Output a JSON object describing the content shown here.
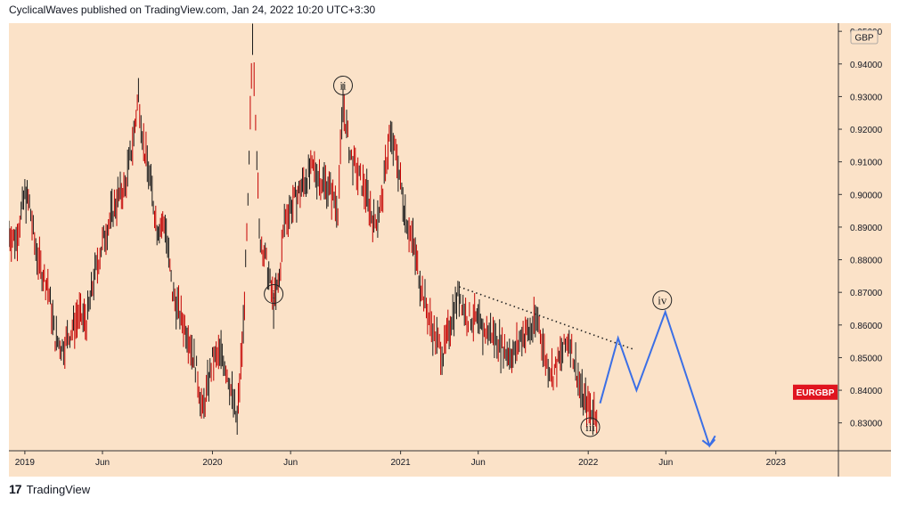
{
  "header": {
    "text": "CyclicalWaves published on TradingView.com, Jan 24, 2022 10:20 UTC+3:30"
  },
  "footer": {
    "brand": "TradingView",
    "logo": "17"
  },
  "colors": {
    "background": "#fbe2c8",
    "candle": "#c40000",
    "projection": "#3b6fe6",
    "badge": "#e0141f"
  },
  "chart_data": {
    "type": "line",
    "symbol": "EURGBP",
    "currency": "GBP",
    "grid": false,
    "ylim": [
      0.822,
      0.9525
    ],
    "y_ticks": [
      "0.95000",
      "0.94000",
      "0.93000",
      "0.92000",
      "0.91000",
      "0.90000",
      "0.89000",
      "0.88000",
      "0.87000",
      "0.86000",
      "0.85000",
      "0.84000",
      "0.83000"
    ],
    "x_ticks": [
      "2019",
      "Jun",
      "2020",
      "Jun",
      "2021",
      "Jun",
      "2022",
      "Jun",
      "2023"
    ],
    "series": [
      {
        "values": [
          [
            "2018-12-01",
            0.888
          ],
          [
            "2018-12-15",
            0.886
          ],
          [
            "2019-01-01",
            0.9
          ],
          [
            "2019-01-10",
            0.897
          ],
          [
            "2019-01-20",
            0.885
          ],
          [
            "2019-02-01",
            0.877
          ],
          [
            "2019-02-15",
            0.872
          ],
          [
            "2019-03-01",
            0.856
          ],
          [
            "2019-03-15",
            0.853
          ],
          [
            "2019-04-01",
            0.858
          ],
          [
            "2019-04-15",
            0.863
          ],
          [
            "2019-05-01",
            0.861
          ],
          [
            "2019-05-15",
            0.874
          ],
          [
            "2019-06-01",
            0.885
          ],
          [
            "2019-06-15",
            0.892
          ],
          [
            "2019-07-01",
            0.899
          ],
          [
            "2019-07-15",
            0.902
          ],
          [
            "2019-08-01",
            0.918
          ],
          [
            "2019-08-10",
            0.931
          ],
          [
            "2019-08-20",
            0.915
          ],
          [
            "2019-09-01",
            0.905
          ],
          [
            "2019-09-15",
            0.89
          ],
          [
            "2019-10-01",
            0.891
          ],
          [
            "2019-10-15",
            0.87
          ],
          [
            "2019-11-01",
            0.862
          ],
          [
            "2019-11-15",
            0.857
          ],
          [
            "2019-12-01",
            0.846
          ],
          [
            "2019-12-13",
            0.833
          ],
          [
            "2020-01-01",
            0.849
          ],
          [
            "2020-01-20",
            0.851
          ],
          [
            "2020-02-01",
            0.844
          ],
          [
            "2020-02-18",
            0.83
          ],
          [
            "2020-03-01",
            0.859
          ],
          [
            "2020-03-10",
            0.896
          ],
          [
            "2020-03-19",
            0.95
          ],
          [
            "2020-03-25",
            0.925
          ],
          [
            "2020-04-01",
            0.888
          ],
          [
            "2020-04-15",
            0.879
          ],
          [
            "2020-04-29",
            0.866
          ],
          [
            "2020-05-10",
            0.874
          ],
          [
            "2020-05-20",
            0.892
          ],
          [
            "2020-06-01",
            0.896
          ],
          [
            "2020-06-15",
            0.9
          ],
          [
            "2020-07-01",
            0.905
          ],
          [
            "2020-07-15",
            0.908
          ],
          [
            "2020-08-01",
            0.904
          ],
          [
            "2020-08-15",
            0.902
          ],
          [
            "2020-09-01",
            0.896
          ],
          [
            "2020-09-11",
            0.928
          ],
          [
            "2020-09-25",
            0.912
          ],
          [
            "2020-10-10",
            0.906
          ],
          [
            "2020-10-25",
            0.901
          ],
          [
            "2020-11-10",
            0.891
          ],
          [
            "2020-11-25",
            0.897
          ],
          [
            "2020-12-10",
            0.918
          ],
          [
            "2020-12-25",
            0.911
          ],
          [
            "2021-01-10",
            0.894
          ],
          [
            "2021-01-25",
            0.885
          ],
          [
            "2021-02-10",
            0.872
          ],
          [
            "2021-02-25",
            0.862
          ],
          [
            "2021-03-10",
            0.856
          ],
          [
            "2021-03-25",
            0.851
          ],
          [
            "2021-04-10",
            0.862
          ],
          [
            "2021-04-25",
            0.87
          ],
          [
            "2021-05-10",
            0.862
          ],
          [
            "2021-05-25",
            0.862
          ],
          [
            "2021-06-10",
            0.858
          ],
          [
            "2021-06-25",
            0.858
          ],
          [
            "2021-07-10",
            0.855
          ],
          [
            "2021-07-25",
            0.852
          ],
          [
            "2021-08-10",
            0.851
          ],
          [
            "2021-08-25",
            0.857
          ],
          [
            "2021-09-10",
            0.858
          ],
          [
            "2021-09-25",
            0.862
          ],
          [
            "2021-10-10",
            0.849
          ],
          [
            "2021-10-25",
            0.845
          ],
          [
            "2021-11-10",
            0.851
          ],
          [
            "2021-11-25",
            0.856
          ],
          [
            "2021-12-05",
            0.849
          ],
          [
            "2021-12-20",
            0.838
          ],
          [
            "2022-01-05",
            0.834
          ],
          [
            "2022-01-20",
            0.833
          ]
        ]
      },
      {
        "values": [
          [
            "2022-01-24",
            0.836
          ],
          [
            "2022-02-28",
            0.856
          ],
          [
            "2022-04-05",
            0.84
          ],
          [
            "2022-05-31",
            0.864
          ],
          [
            "2022-08-25",
            0.823
          ],
          [
            "2022-09-05",
            0.826
          ]
        ]
      }
    ],
    "trendline": [
      [
        "2021-04-25",
        0.8717
      ],
      [
        "2022-03-31",
        0.8525
      ]
    ],
    "wave_labels": [
      {
        "text": "i",
        "x": "2020-04-29",
        "y": 0.8695
      },
      {
        "text": "ii",
        "x": "2020-09-11",
        "y": 0.9334
      },
      {
        "text": "iii",
        "x": "2022-01-05",
        "y": 0.8287
      },
      {
        "text": "iv",
        "x": "2022-05-25",
        "y": 0.8676
      }
    ],
    "last_price_label": "EURGBP",
    "last_price": 0.8394
  }
}
